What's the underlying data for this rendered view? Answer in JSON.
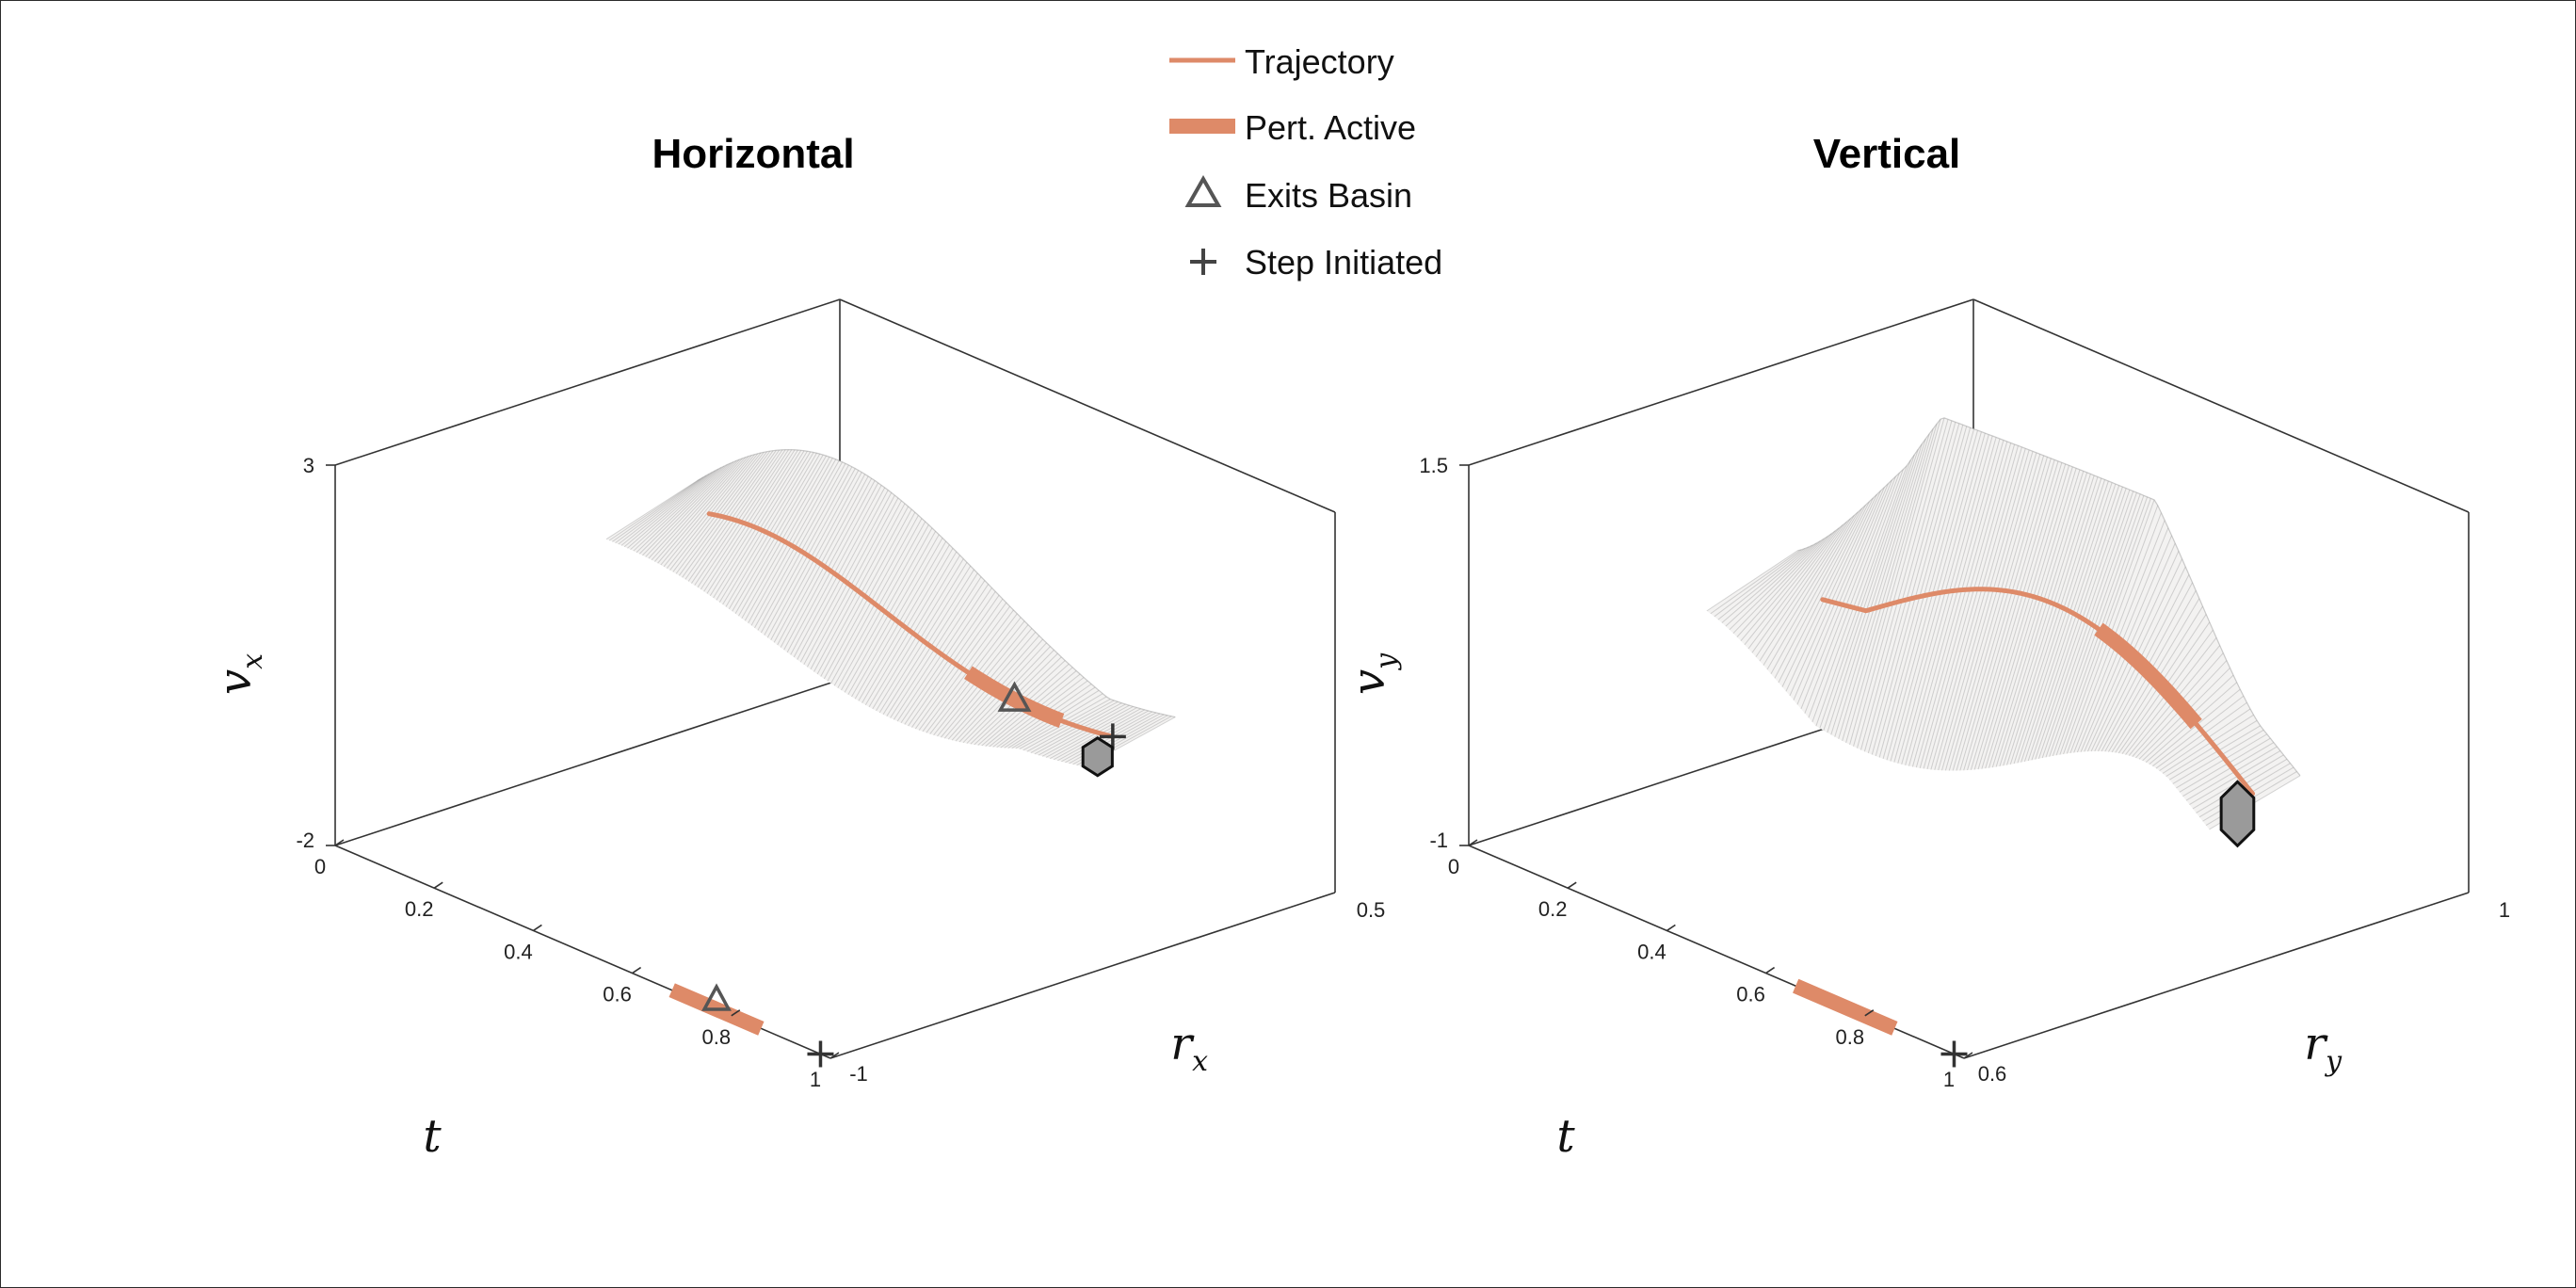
{
  "legend": {
    "trajectory": "Trajectory",
    "pert_active": "Pert. Active",
    "exits_basin": "Exits Basin",
    "step_initiated": "Step Initiated"
  },
  "colors": {
    "trajectory": "#de8a68",
    "hexagon": "#9a9a9a",
    "mesh": "#8a8a8a"
  },
  "chart_data": [
    {
      "type": "3d-surface-with-trajectory",
      "title": "Horizontal",
      "xlabel": "t",
      "ylabel_base": "r",
      "ylabel_sub": "x",
      "zlabel_base": "v",
      "zlabel_sub": "x",
      "t_ticks": [
        "0",
        "0.2",
        "0.4",
        "0.6",
        "0.8",
        "1"
      ],
      "r_ticks": [
        "-1",
        "0.5"
      ],
      "v_ticks": [
        "-2",
        "3"
      ],
      "t_range": [
        0,
        1
      ],
      "r_range": [
        -1,
        0.5
      ],
      "v_range": [
        -2,
        3
      ],
      "pert_active_t": [
        0.68,
        0.86
      ],
      "exits_basin_t": 0.77,
      "step_initiated_t": 0.98
    },
    {
      "type": "3d-surface-with-trajectory",
      "title": "Vertical",
      "xlabel": "t",
      "ylabel_base": "r",
      "ylabel_sub": "y",
      "zlabel_base": "v",
      "zlabel_sub": "y",
      "t_ticks": [
        "0",
        "0.2",
        "0.4",
        "0.6",
        "0.8",
        "1"
      ],
      "r_ticks": [
        "0.6",
        "1"
      ],
      "v_ticks": [
        "-1",
        "1.5"
      ],
      "t_range": [
        0,
        1
      ],
      "r_range": [
        0.6,
        1
      ],
      "v_range": [
        -1,
        1.5
      ],
      "pert_active_t": [
        0.66,
        0.86
      ],
      "exits_basin_t": null,
      "step_initiated_t": 0.98
    }
  ]
}
